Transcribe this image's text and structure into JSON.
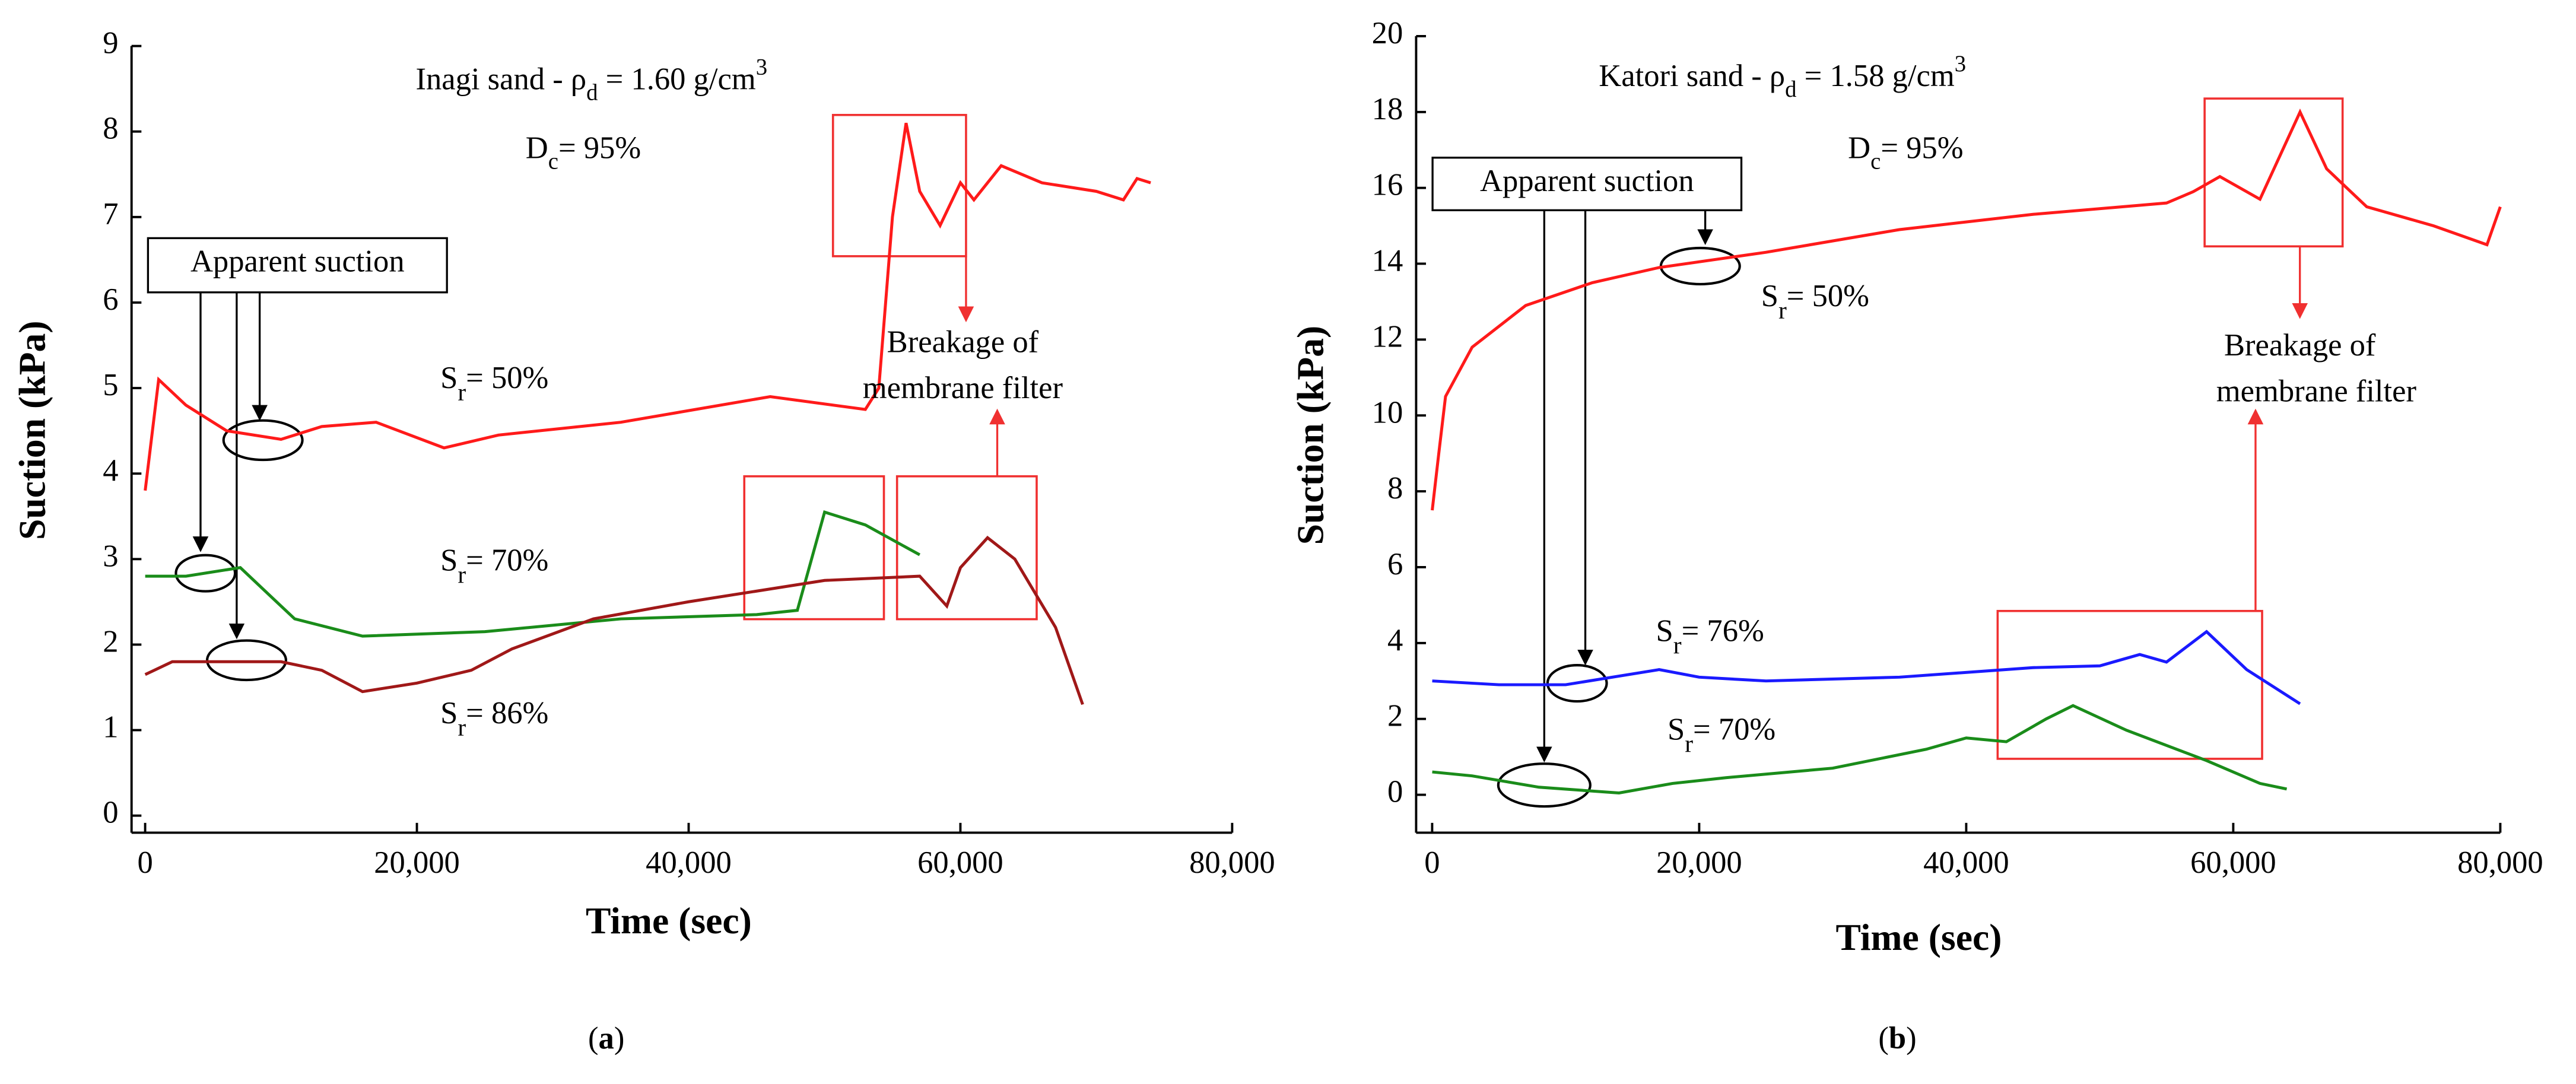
{
  "chart_data": [
    {
      "type": "line",
      "title": [
        "Inagi sand - ρ",
        "d",
        " = 1.60 g/cm",
        "3"
      ],
      "subtitle": [
        "D",
        "c",
        "= 95%"
      ],
      "xlabel": "Time (sec)",
      "ylabel": "Suction (kPa)",
      "panel": [
        "(",
        "a",
        ")"
      ],
      "annotations": [
        "Apparent suction",
        "Breakage of",
        "membrane filter"
      ],
      "xlim": [
        -1000,
        80000
      ],
      "xticks": [
        0,
        {
          "value": 20000,
          "label": "20,000"
        },
        {
          "value": 40000,
          "label": "40,000"
        },
        {
          "value": 60000,
          "label": "60,000"
        },
        {
          "value": 80000,
          "label": "80,000"
        }
      ],
      "ylim": [
        -0.2,
        9
      ],
      "yticks": [
        0,
        1,
        2,
        3,
        4,
        5,
        6,
        7,
        8,
        9
      ],
      "series": [
        {
          "name": "Sr= 50%",
          "color": "#ff1a1a",
          "x": [
            0,
            1000,
            3000,
            6000,
            10000,
            13000,
            17000,
            22000,
            26000,
            35000,
            46000,
            53000,
            54000,
            55000,
            56000,
            57000,
            58500,
            60000,
            61000,
            63000,
            66000,
            70000,
            72000,
            73000,
            74000
          ],
          "values": [
            3.8,
            5.1,
            4.8,
            4.5,
            4.4,
            4.55,
            4.6,
            4.3,
            4.45,
            4.6,
            4.9,
            4.75,
            5.0,
            7.0,
            8.1,
            7.3,
            6.9,
            7.4,
            7.2,
            7.6,
            7.4,
            7.3,
            7.2,
            7.45,
            7.4
          ]
        },
        {
          "name": "Sr= 70%",
          "color": "#1a8c1a",
          "x": [
            0,
            3000,
            7000,
            9000,
            11000,
            16000,
            25000,
            35000,
            45000,
            48000,
            50000,
            53000,
            57000
          ],
          "values": [
            2.8,
            2.8,
            2.9,
            2.6,
            2.3,
            2.1,
            2.15,
            2.3,
            2.35,
            2.4,
            3.55,
            3.4,
            3.05
          ]
        },
        {
          "name": "Sr= 86%",
          "color": "#a01818",
          "x": [
            0,
            2000,
            10000,
            13000,
            16000,
            20000,
            24000,
            27000,
            33000,
            40000,
            50000,
            57000,
            59000,
            60000,
            62000,
            64000,
            67000,
            69000
          ],
          "values": [
            1.65,
            1.8,
            1.8,
            1.7,
            1.45,
            1.55,
            1.7,
            1.95,
            2.3,
            2.5,
            2.75,
            2.8,
            2.45,
            2.9,
            3.25,
            3.0,
            2.2,
            1.3
          ]
        }
      ]
    },
    {
      "type": "line",
      "title": [
        "Katori sand - ρ",
        "d",
        " = 1.58 g/cm",
        "3"
      ],
      "subtitle": [
        "D",
        "c",
        "= 95%"
      ],
      "xlabel": "Time (sec)",
      "ylabel": "Suction (kPa)",
      "panel": [
        "(",
        "b",
        ")"
      ],
      "annotations": [
        "Apparent suction",
        "Breakage of",
        "membrane filter"
      ],
      "xlim": [
        -1200,
        80000
      ],
      "xticks": [
        0,
        {
          "value": 20000,
          "label": "20,000"
        },
        {
          "value": 40000,
          "label": "40,000"
        },
        {
          "value": 60000,
          "label": "60,000"
        },
        {
          "value": 80000,
          "label": "80,000"
        }
      ],
      "ylim": [
        -1,
        20
      ],
      "yticks": [
        0,
        2,
        4,
        6,
        8,
        10,
        12,
        14,
        16,
        18,
        20
      ],
      "series": [
        {
          "name": "Sr= 50%",
          "color": "#ff1a1a",
          "x": [
            0,
            500,
            1000,
            3000,
            7000,
            12000,
            17000,
            25000,
            35000,
            45000,
            55000,
            57000,
            59000,
            62000,
            65000,
            67000,
            70000,
            75000,
            79000,
            80000
          ],
          "values": [
            7.5,
            9,
            10.5,
            11.8,
            12.9,
            13.5,
            13.9,
            14.3,
            14.9,
            15.3,
            15.6,
            15.9,
            16.3,
            15.7,
            18.0,
            16.5,
            15.5,
            15.0,
            14.5,
            15.5
          ]
        },
        {
          "name": "Sr= 76%",
          "color": "#1a1aff",
          "x": [
            0,
            5000,
            10000,
            17000,
            20000,
            25000,
            35000,
            45000,
            50000,
            53000,
            55000,
            58000,
            61000,
            65000
          ],
          "values": [
            3,
            2.9,
            2.9,
            3.3,
            3.1,
            3.0,
            3.1,
            3.35,
            3.4,
            3.7,
            3.5,
            4.3,
            3.3,
            2.4
          ]
        },
        {
          "name": "Sr= 70%",
          "color": "#1a8c1a",
          "x": [
            0,
            3000,
            8000,
            14000,
            18000,
            22000,
            30000,
            37000,
            40000,
            43000,
            46000,
            48000,
            52000,
            58000,
            62000,
            64000
          ],
          "values": [
            0.6,
            0.5,
            0.2,
            0.05,
            0.3,
            0.45,
            0.7,
            1.2,
            1.5,
            1.4,
            2.0,
            2.35,
            1.7,
            0.9,
            0.3,
            0.15
          ]
        }
      ]
    }
  ]
}
